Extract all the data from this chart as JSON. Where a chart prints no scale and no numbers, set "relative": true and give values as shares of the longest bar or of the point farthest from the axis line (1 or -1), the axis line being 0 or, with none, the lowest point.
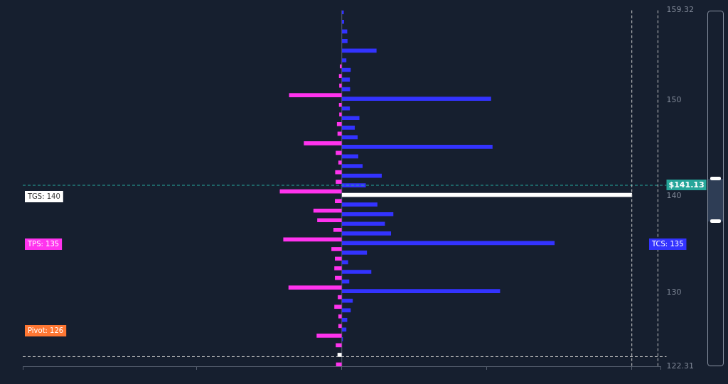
{
  "chart_data": {
    "type": "bar",
    "orientation": "horizontal",
    "relative": true,
    "x": [
      159.31,
      158.31,
      157.31,
      156.31,
      155.31,
      154.31,
      153.31,
      152.31,
      151.31,
      150.31,
      149.31,
      148.31,
      147.31,
      146.31,
      145.31,
      144.31,
      143.31,
      142.31,
      141.31,
      140.31,
      139.31,
      138.31,
      137.31,
      136.31,
      135.31,
      134.31,
      133.31,
      132.31,
      131.31,
      130.31,
      129.31,
      128.31,
      127.31,
      126.31,
      125.31,
      124.31,
      123.31,
      122.31
    ],
    "series": [
      {
        "color": "#ff33ee",
        "values": [
          null,
          null,
          null,
          null,
          null,
          null,
          -0.006,
          -0.009,
          -0.008,
          -0.181,
          -0.009,
          -0.008,
          -0.016,
          -0.014,
          -0.13,
          -0.02,
          -0.011,
          -0.022,
          -0.02,
          -0.213,
          -0.023,
          -0.097,
          -0.084,
          -0.028,
          -0.201,
          -0.035,
          -0.023,
          -0.025,
          -0.023,
          -0.183,
          -0.013,
          -0.025,
          -0.011,
          -0.011,
          -0.086,
          -0.02,
          -0.014,
          -0.019
        ],
        "colors": [
          "#ff33ee",
          "#ff33ee",
          "#ff33ee",
          "#ff33ee",
          "#ff33ee",
          "#ff33ee",
          "#ff33ee",
          "#ff33ee",
          "#ff33ee",
          "#ff33ee",
          "#ff33ee",
          "#ff33ee",
          "#ff33ee",
          "#ff33ee",
          "#ff33ee",
          "#ff33ee",
          "#ff33ee",
          "#ff33ee",
          "#ff33ee",
          "#ff33ee",
          "#ff33ee",
          "#ff33ee",
          "#ff33ee",
          "#ff33ee",
          "#ff33ee",
          "#ff33ee",
          "#ff33ee",
          "#ff33ee",
          "#ff33ee",
          "#ff33ee",
          "#ff33ee",
          "#ff33ee",
          "#ff33ee",
          "#ff33ee",
          "#ff33ee",
          "#ff33ee",
          "#ffffff",
          "#ff33ee"
        ]
      },
      {
        "color": "#3333ff",
        "values": [
          0.006,
          0.007,
          0.018,
          0.019,
          0.119,
          0.015,
          0.03,
          0.027,
          0.028,
          0.514,
          0.027,
          0.06,
          0.044,
          0.054,
          0.519,
          0.056,
          0.071,
          0.137,
          0.082,
          1,
          0.122,
          0.177,
          0.148,
          0.169,
          0.733,
          0.086,
          0.021,
          0.101,
          0.025,
          0.545,
          0.037,
          0.03,
          0.018,
          0.015,
          0.003,
          null,
          null,
          null
        ],
        "colors": [
          "#3333ff",
          "#3333ff",
          "#3333ff",
          "#3333ff",
          "#3333ff",
          "#3333ff",
          "#3333ff",
          "#3333ff",
          "#3333ff",
          "#3333ff",
          "#3333ff",
          "#3333ff",
          "#3333ff",
          "#3333ff",
          "#3333ff",
          "#3333ff",
          "#3333ff",
          "#3333ff",
          "#3333ff",
          "#ffffff",
          "#3333ff",
          "#3333ff",
          "#3333ff",
          "#3333ff",
          "#3333ff",
          "#3333ff",
          "#3333ff",
          "#3333ff",
          "#3333ff",
          "#3333ff",
          "#3333ff",
          "#3333ff",
          "#3333ff",
          "#3333ff",
          "#3333ff",
          "#3333ff",
          "#3333ff",
          "#3333ff"
        ]
      }
    ],
    "ylim": [
      122.31,
      159.32
    ],
    "yticks": [
      122.31,
      130,
      140,
      150,
      159.32
    ],
    "tick_labels": "y",
    "grid": false,
    "legend": false,
    "ref_lines": [
      {
        "axis": "y",
        "value": 141.13,
        "label": "$141.13",
        "color": "#26a69a",
        "line_style": "dashed"
      },
      {
        "axis": "y",
        "value": 123.31,
        "color": "#cccccc",
        "line_style": "dashed"
      },
      {
        "axis": "x",
        "value": 1,
        "color": "#cccccc",
        "line_style": "dashed"
      },
      {
        "axis": "x",
        "value": 1.09,
        "color": "#cccccc",
        "line_style": "dashed"
      }
    ],
    "annotations": [
      "TGS: 140",
      "TPS: 135",
      "TCS: 135",
      "Pivot: 126"
    ]
  }
}
